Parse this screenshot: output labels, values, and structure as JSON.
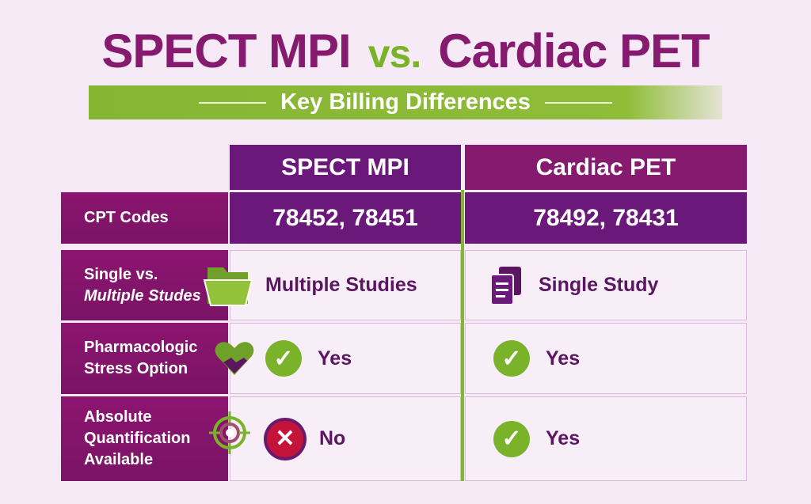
{
  "title": {
    "left": "SPECT MPI",
    "vs": "vs.",
    "right": "Cardiac PET"
  },
  "subtitle": "Key Billing Differences",
  "columns": [
    "SPECT MPI",
    "Cardiac PET"
  ],
  "rows": [
    {
      "label1": "CPT Codes",
      "label2": "",
      "spect": "78452, 78451",
      "pet": "78492, 78431"
    },
    {
      "label1": "Single vs.",
      "label2": "Multiple Studes",
      "icon": "folder-icon",
      "spect": "Multiple Studies",
      "spect_icon": "",
      "pet": "Single Study",
      "pet_icon": "documents-icon"
    },
    {
      "label1": "Pharmacologic",
      "label2": "Stress Option",
      "icon": "broken-heart-icon",
      "spect": "Yes",
      "spect_icon": "check-circle-icon",
      "pet": "Yes",
      "pet_icon": "check-circle-icon"
    },
    {
      "label1": "Absolute",
      "label2": "Quantification",
      "label3": "Available",
      "icon": "target-icon",
      "spect": "No",
      "spect_icon": "x-circle-icon",
      "pet": "Yes",
      "pet_icon": "check-circle-icon"
    }
  ],
  "colors": {
    "purple": "#6a197a",
    "magenta": "#861a6e",
    "green": "#7ab32a",
    "red": "#c4143a",
    "background": "#f6eaf6"
  }
}
